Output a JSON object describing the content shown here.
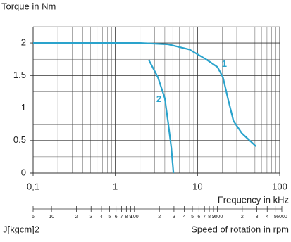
{
  "chart_data": {
    "type": "line",
    "y_axis_label": "Torque in Nm",
    "x_axis_label": "Frequency in kHz",
    "x_log": true,
    "grid": true,
    "xlim": [
      0.1,
      100
    ],
    "xticks": [
      {
        "value": 0.1,
        "label": "0,1"
      },
      1,
      10,
      100
    ],
    "x_minor_ticks": [
      0.2,
      0.3,
      0.4,
      0.5,
      0.6,
      0.7,
      0.8,
      0.9,
      2,
      3,
      4,
      5,
      6,
      7,
      8,
      9,
      20,
      30,
      40,
      50,
      60,
      70,
      80,
      90
    ],
    "ylim": [
      0,
      2.25
    ],
    "yticks": [
      0,
      0.5,
      1,
      1.5,
      2
    ],
    "y_minor_ticks": [
      0.25,
      0.75,
      1.25,
      1.75,
      2.25
    ],
    "series": [
      {
        "name": "1",
        "color": "#2aa3cc",
        "x": [
          0.1,
          2.0,
          4.4,
          8.0,
          13,
          17.5,
          20.4,
          23.4,
          27.4,
          34.7,
          51.5
        ],
        "values": [
          2.0,
          2.0,
          1.98,
          1.9,
          1.74,
          1.63,
          1.47,
          1.15,
          0.8,
          0.61,
          0.41
        ]
      },
      {
        "name": "2",
        "color": "#2aa3cc",
        "x": [
          2.55,
          3.3,
          4.0,
          4.4,
          4.8,
          5.1
        ],
        "values": [
          1.74,
          1.47,
          1.15,
          0.77,
          0.39,
          0
        ]
      }
    ],
    "rpm_axis": {
      "label": "Speed of rotation in rpm",
      "log": true,
      "lim": [
        6,
        6000
      ],
      "ticks": [
        6,
        10,
        {
          "value": 20,
          "label": "2"
        },
        {
          "value": 30,
          "label": "3"
        },
        {
          "value": 40,
          "label": "4"
        },
        {
          "value": 50,
          "label": "5"
        },
        {
          "value": 60,
          "label": "6"
        },
        {
          "value": 70,
          "label": "7"
        },
        {
          "value": 80,
          "label": "8"
        },
        {
          "value": 90,
          "label": "9"
        },
        100,
        {
          "value": 200,
          "label": "2"
        },
        {
          "value": 300,
          "label": "3"
        },
        {
          "value": 400,
          "label": "4"
        },
        {
          "value": 500,
          "label": "5"
        },
        {
          "value": 600,
          "label": "6"
        },
        {
          "value": 700,
          "label": "7"
        },
        {
          "value": 800,
          "label": "8"
        },
        {
          "value": 900,
          "label": "9"
        },
        1000,
        {
          "value": 2000,
          "label": "2"
        },
        {
          "value": 3000,
          "label": "3"
        },
        {
          "value": 4000,
          "label": "4"
        },
        {
          "value": 5000,
          "label": "5"
        },
        6000
      ]
    },
    "j_label": "J[kgcm]2"
  }
}
